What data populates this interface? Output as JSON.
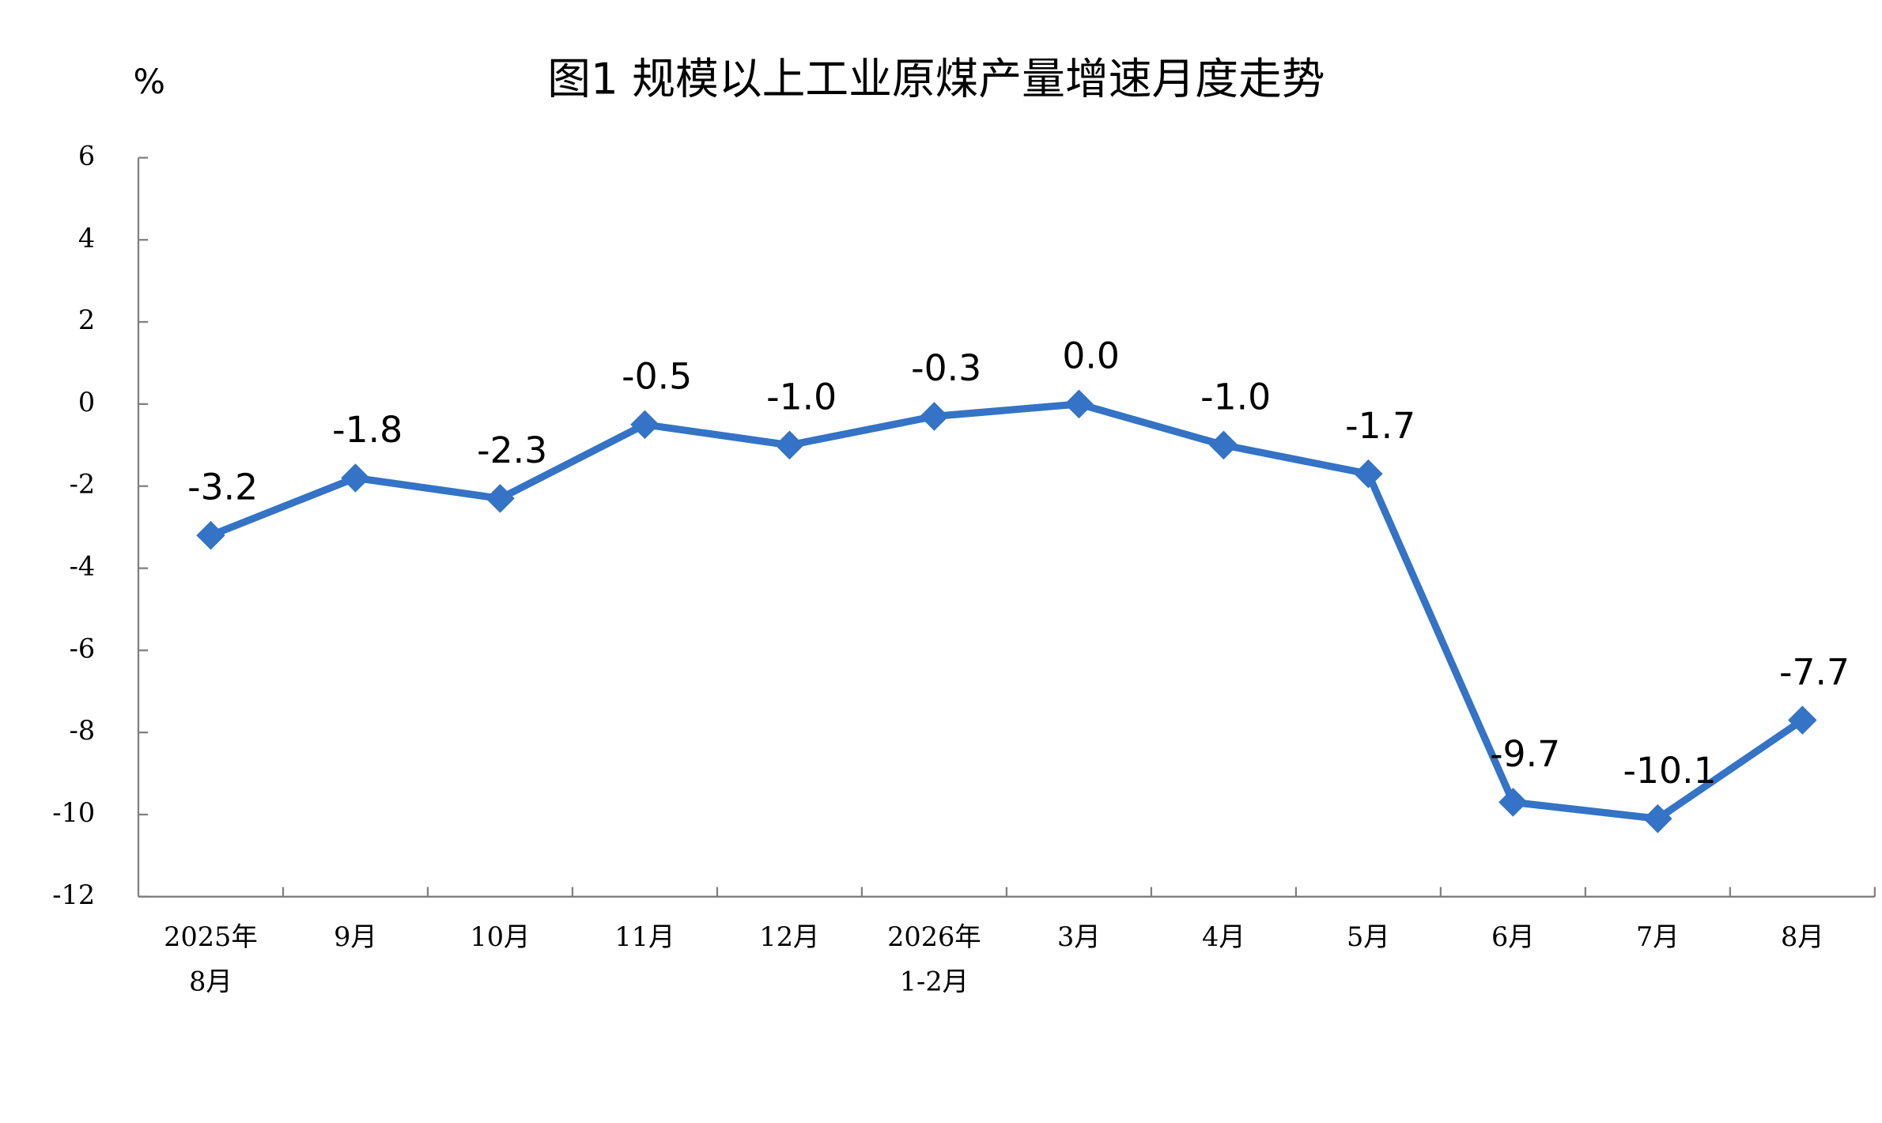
{
  "chart_data": {
    "type": "line",
    "title": "图1  规模以上工业原煤产量增速月度走势",
    "ylabel": "%",
    "categories": [
      [
        "2025年",
        "8月"
      ],
      [
        "9月"
      ],
      [
        "10月"
      ],
      [
        "11月"
      ],
      [
        "12月"
      ],
      [
        "2026年",
        "1-2月"
      ],
      [
        "3月"
      ],
      [
        "4月"
      ],
      [
        "5月"
      ],
      [
        "6月"
      ],
      [
        "7月"
      ],
      [
        "8月"
      ]
    ],
    "series": [
      {
        "color": "#3473c5",
        "values": [
          -3.2,
          -1.8,
          -2.3,
          -0.5,
          -1.0,
          -0.3,
          0.0,
          -1.0,
          -1.7,
          -9.7,
          -10.1,
          -7.7
        ],
        "value_labels": [
          "-3.2",
          "-1.8",
          "-2.3",
          "-0.5",
          "-1.0",
          "-0.3",
          "0.0",
          "-1.0",
          "-1.7",
          "-9.7",
          "-10.1",
          "-7.7"
        ]
      }
    ],
    "ylim": [
      -12,
      6
    ],
    "yticks": [
      -12,
      -10,
      -8,
      -6,
      -4,
      -2,
      0,
      2,
      4,
      6
    ],
    "grid": false
  }
}
